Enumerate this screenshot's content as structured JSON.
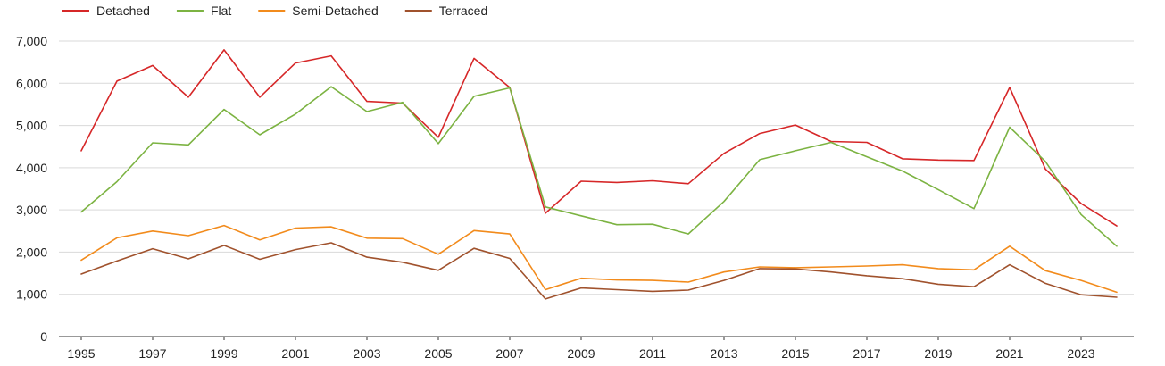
{
  "chart_data": {
    "type": "line",
    "title": "",
    "xlabel": "",
    "ylabel": "",
    "x": [
      1995,
      1996,
      1997,
      1998,
      1999,
      2000,
      2001,
      2002,
      2003,
      2004,
      2005,
      2006,
      2007,
      2008,
      2009,
      2010,
      2011,
      2012,
      2013,
      2014,
      2015,
      2016,
      2017,
      2018,
      2019,
      2020,
      2021,
      2022,
      2023,
      2024
    ],
    "x_tick_labels": [
      "1995",
      "1997",
      "1999",
      "2001",
      "2003",
      "2005",
      "2007",
      "2009",
      "2011",
      "2013",
      "2015",
      "2017",
      "2019",
      "2021",
      "2023"
    ],
    "y_tick_labels": [
      "0",
      "1,000",
      "2,000",
      "3,000",
      "4,000",
      "5,000",
      "6,000",
      "7,000"
    ],
    "ylim": [
      0,
      7000
    ],
    "grid": true,
    "legend_position": "top-left",
    "series": [
      {
        "name": "Detached",
        "color": "#d62728",
        "values": [
          4400,
          6050,
          6420,
          5670,
          6790,
          5670,
          6480,
          6650,
          5570,
          5530,
          4720,
          6590,
          5900,
          2920,
          3680,
          3650,
          3690,
          3620,
          4340,
          4810,
          5010,
          4620,
          4600,
          4210,
          4180,
          4170,
          5900,
          3970,
          3150,
          2620
        ]
      },
      {
        "name": "Flat",
        "color": "#7cb342",
        "values": [
          2950,
          3670,
          4590,
          4540,
          5380,
          4780,
          5270,
          5920,
          5330,
          5550,
          4570,
          5690,
          5890,
          3070,
          2860,
          2650,
          2660,
          2430,
          3200,
          4190,
          4400,
          4600,
          4260,
          3920,
          3480,
          3030,
          4960,
          4150,
          2890,
          2140
        ]
      },
      {
        "name": "Semi-Detached",
        "color": "#f28b1c",
        "values": [
          1810,
          2340,
          2500,
          2390,
          2630,
          2290,
          2570,
          2600,
          2330,
          2320,
          1950,
          2510,
          2430,
          1110,
          1380,
          1340,
          1330,
          1290,
          1530,
          1650,
          1630,
          1650,
          1670,
          1700,
          1610,
          1580,
          2140,
          1560,
          1330,
          1050
        ]
      },
      {
        "name": "Terraced",
        "color": "#a0522d",
        "values": [
          1480,
          1790,
          2080,
          1840,
          2160,
          1830,
          2060,
          2220,
          1880,
          1760,
          1570,
          2090,
          1850,
          890,
          1150,
          1110,
          1070,
          1100,
          1330,
          1610,
          1600,
          1530,
          1440,
          1370,
          1240,
          1180,
          1700,
          1260,
          990,
          930
        ]
      }
    ]
  }
}
